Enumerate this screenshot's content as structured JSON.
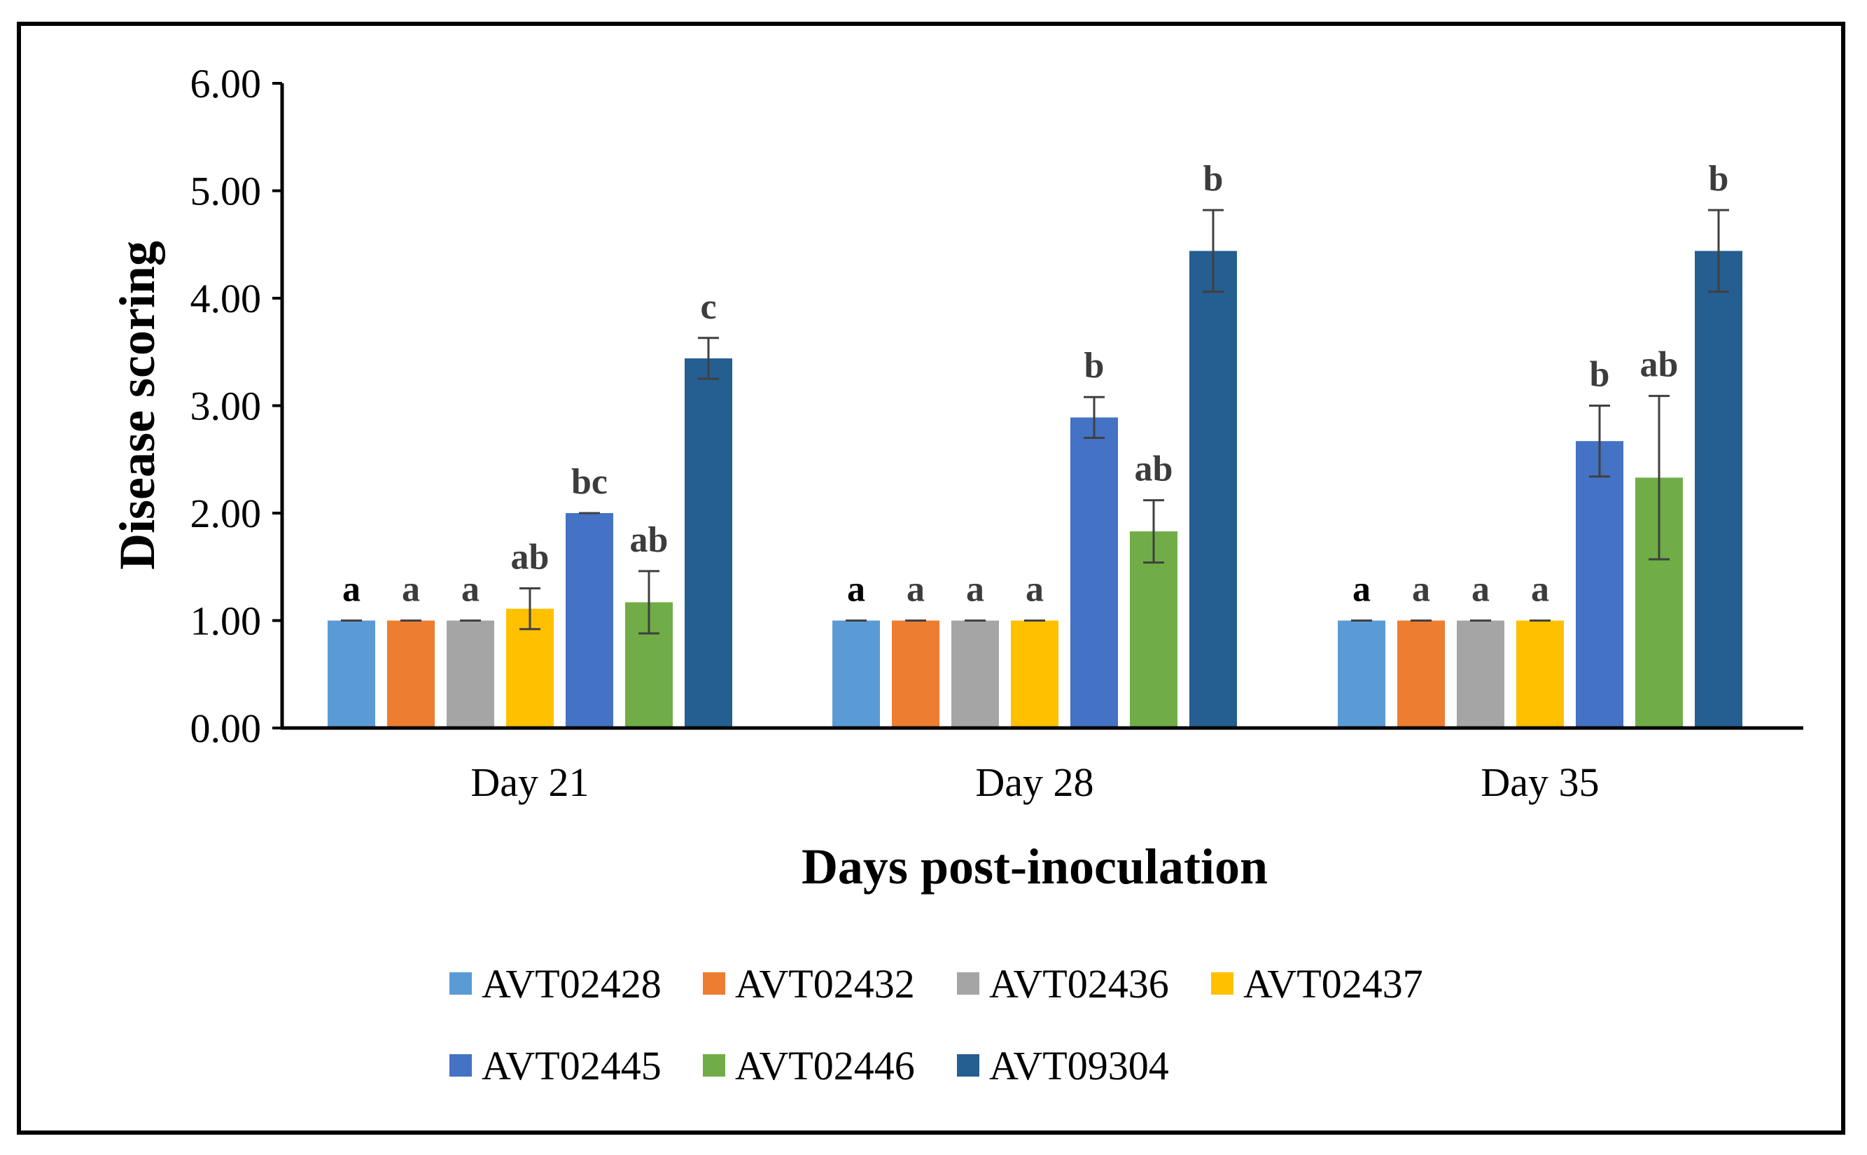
{
  "chart_data": {
    "type": "bar",
    "title": "",
    "xlabel": "Days post-inoculation",
    "ylabel": "Disease scoring",
    "ylim": [
      0,
      6
    ],
    "yticks": [
      0,
      1,
      2,
      3,
      4,
      5,
      6
    ],
    "ytick_labels": [
      "0.00",
      "1.00",
      "2.00",
      "3.00",
      "4.00",
      "5.00",
      "6.00"
    ],
    "grid": false,
    "legend_position": "bottom",
    "categories": [
      "Day 21",
      "Day 28",
      "Day 35"
    ],
    "series": [
      {
        "name": "AVT02428",
        "color": "#5b9bd5",
        "values": [
          1.0,
          1.0,
          1.0
        ],
        "errors": [
          0.0,
          0.0,
          0.0
        ],
        "labels": [
          "a",
          "a",
          "a"
        ]
      },
      {
        "name": "AVT02432",
        "color": "#ed7d31",
        "values": [
          1.0,
          1.0,
          1.0
        ],
        "errors": [
          0.0,
          0.0,
          0.0
        ],
        "labels": [
          "a",
          "a",
          "a"
        ]
      },
      {
        "name": "AVT02436",
        "color": "#a5a5a5",
        "values": [
          1.0,
          1.0,
          1.0
        ],
        "errors": [
          0.0,
          0.0,
          0.0
        ],
        "labels": [
          "a",
          "a",
          "a"
        ]
      },
      {
        "name": "AVT02437",
        "color": "#ffc000",
        "values": [
          1.11,
          1.0,
          1.0
        ],
        "errors": [
          0.19,
          0.0,
          0.0
        ],
        "labels": [
          "ab",
          "a",
          "a"
        ]
      },
      {
        "name": "AVT02445",
        "color": "#4472c4",
        "values": [
          2.0,
          2.89,
          2.67
        ],
        "errors": [
          0.0,
          0.19,
          0.33
        ],
        "labels": [
          "bc",
          "b",
          "b"
        ]
      },
      {
        "name": "AVT02446",
        "color": "#70ad47",
        "values": [
          1.17,
          1.83,
          2.33
        ],
        "errors": [
          0.29,
          0.29,
          0.76
        ],
        "labels": [
          "ab",
          "ab",
          "ab"
        ]
      },
      {
        "name": "AVT09304",
        "color": "#255e91",
        "values": [
          3.44,
          4.44,
          4.44
        ],
        "errors": [
          0.19,
          0.38,
          0.38
        ],
        "labels": [
          "c",
          "b",
          "b"
        ]
      }
    ]
  }
}
